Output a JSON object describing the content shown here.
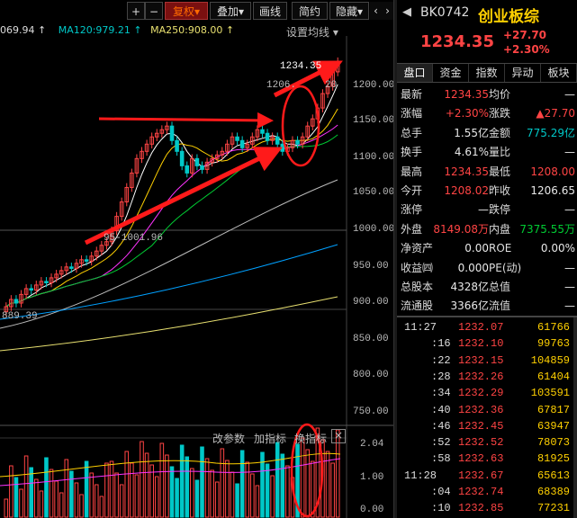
{
  "toolbar": {
    "plus": "+",
    "minus": "−",
    "fuquan": "复权",
    "fuquan_arrow": "▾",
    "diejia": "叠加",
    "diejia_arrow": "▾",
    "huaxian": "画线",
    "jianyue": "简约",
    "yincang": "隐藏",
    "yincang_arrow": "▾",
    "prev": "‹",
    "next": "›"
  },
  "ma_legend": {
    "ma60": "069.94 ↑",
    "ma120": "MA120:979.21 ↑",
    "ma250": "MA250:908.00 ↑",
    "settings": "设置均线 ▾"
  },
  "price_axis": [
    "1200.00",
    "1150.00",
    "1100.00",
    "1050.00",
    "1000.00",
    "950.00",
    "900.00",
    "850.00",
    "800.00",
    "750.00"
  ],
  "annotations": {
    "high_label": "1234.35",
    "prev_label": "1206.",
    "prev_label2": "20",
    "range_label": "95-1001.96",
    "low_label": "889.39"
  },
  "indicator": {
    "tune": "改参数",
    "add": "加指标",
    "change": "换指标",
    "close": "×",
    "axis": [
      "2.04",
      "1.00",
      "0.00"
    ]
  },
  "header": {
    "code": "BK0742",
    "name": "创业板综",
    "price": "1234.35",
    "change": "+27.70",
    "change_pct": "+2.30%"
  },
  "tabs": [
    "盘口",
    "资金",
    "指数",
    "异动",
    "板块"
  ],
  "quote": [
    {
      "l1": "最新",
      "v1": "1234.35",
      "c1": "red",
      "l2": "均价",
      "v2": "—",
      "c2": "white"
    },
    {
      "l1": "涨幅",
      "v1": "+2.30%",
      "c1": "red",
      "l2": "涨跌",
      "v2": "▲27.70",
      "c2": "red"
    },
    {
      "l1": "总手",
      "v1": "1.55亿",
      "c1": "white",
      "l2": "金额",
      "v2": "775.29亿",
      "c2": "cyan"
    },
    {
      "l1": "换手",
      "v1": "4.61%",
      "c1": "white",
      "l2": "量比",
      "v2": "—",
      "c2": "white"
    },
    {
      "l1": "最高",
      "v1": "1234.35",
      "c1": "red",
      "l2": "最低",
      "v2": "1208.00",
      "c2": "red"
    },
    {
      "l1": "今开",
      "v1": "1208.02",
      "c1": "red",
      "l2": "昨收",
      "v2": "1206.65",
      "c2": "white"
    },
    {
      "l1": "涨停",
      "v1": "—",
      "c1": "white",
      "l2": "跌停",
      "v2": "—",
      "c2": "white"
    },
    {
      "l1": "外盘",
      "v1": "8149.08万",
      "c1": "red",
      "l2": "内盘",
      "v2": "7375.55万",
      "c2": "green"
    },
    {
      "l1": "净资产",
      "v1": "0.00",
      "c1": "white",
      "l2": "ROE",
      "v2": "0.00%",
      "c2": "white"
    },
    {
      "l1": "收益㈣",
      "v1": "0.000",
      "c1": "white",
      "l2": "PE(动)",
      "v2": "—",
      "c2": "white"
    },
    {
      "l1": "总股本",
      "v1": "4328亿",
      "c1": "white",
      "l2": "总值",
      "v2": "—",
      "c2": "white"
    },
    {
      "l1": "流通股",
      "v1": "3366亿",
      "c1": "white",
      "l2": "流值",
      "v2": "—",
      "c2": "white"
    }
  ],
  "ticks": [
    {
      "t": "11:27",
      "p": "1232.07",
      "v": "61766"
    },
    {
      "t": ":16",
      "p": "1232.10",
      "v": "99763"
    },
    {
      "t": ":22",
      "p": "1232.15",
      "v": "104859"
    },
    {
      "t": ":28",
      "p": "1232.26",
      "v": "61404"
    },
    {
      "t": ":34",
      "p": "1232.29",
      "v": "103591"
    },
    {
      "t": ":40",
      "p": "1232.36",
      "v": "67817"
    },
    {
      "t": ":46",
      "p": "1232.45",
      "v": "63947"
    },
    {
      "t": ":52",
      "p": "1232.52",
      "v": "78073"
    },
    {
      "t": ":58",
      "p": "1232.63",
      "v": "81925"
    },
    {
      "t": "11:28",
      "p": "1232.67",
      "v": "65613"
    },
    {
      "t": ":04",
      "p": "1232.74",
      "v": "68389"
    },
    {
      "t": ":10",
      "p": "1232.85",
      "v": "77231"
    }
  ],
  "colors": {
    "up": "#ff4444",
    "down": "#00cc33",
    "accent": "#ffd000",
    "cyan": "#00c8c8",
    "annotation": "#ff1a1a"
  }
}
